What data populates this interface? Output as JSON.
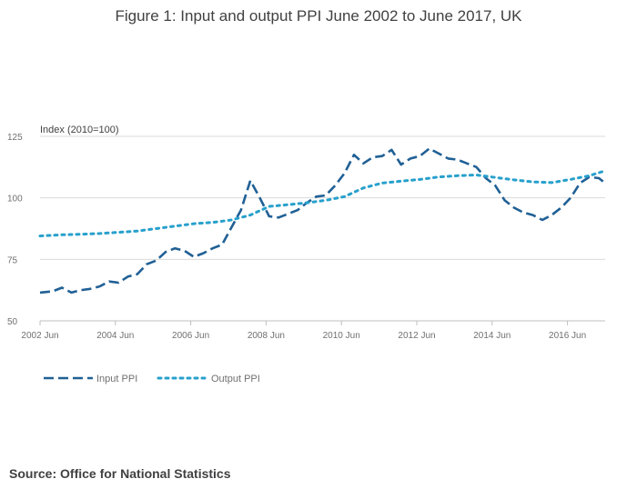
{
  "chart_data": {
    "type": "line",
    "title": "Figure 1: Input and output PPI June 2002 to June 2017, UK",
    "ylabel": "Index (2010=100)",
    "xlabel": "",
    "ylim": [
      50,
      125
    ],
    "yticks": [
      50,
      75,
      100,
      125
    ],
    "xlim": [
      2002.417,
      2017.417
    ],
    "xticks": [
      {
        "label": "2002 Jun",
        "value": 2002.417
      },
      {
        "label": "2004 Jun",
        "value": 2004.417
      },
      {
        "label": "2006 Jun",
        "value": 2006.417
      },
      {
        "label": "2008 Jun",
        "value": 2008.417
      },
      {
        "label": "2010 Jun",
        "value": 2010.417
      },
      {
        "label": "2012 Jun",
        "value": 2012.417
      },
      {
        "label": "2014 Jun",
        "value": 2014.417
      },
      {
        "label": "2016 Jun",
        "value": 2016.417
      }
    ],
    "grid": true,
    "legend_position": "bottom-left",
    "series": [
      {
        "name": "Input PPI",
        "color": "#206095",
        "style": "dashed",
        "x": [
          2002.417,
          2002.75,
          2003.0,
          2003.25,
          2003.5,
          2003.75,
          2004.0,
          2004.25,
          2004.5,
          2004.75,
          2005.0,
          2005.25,
          2005.5,
          2005.75,
          2006.0,
          2006.25,
          2006.5,
          2006.75,
          2007.0,
          2007.25,
          2007.5,
          2007.75,
          2008.0,
          2008.25,
          2008.5,
          2008.75,
          2009.0,
          2009.25,
          2009.5,
          2009.75,
          2010.0,
          2010.25,
          2010.5,
          2010.75,
          2011.0,
          2011.25,
          2011.5,
          2011.75,
          2012.0,
          2012.25,
          2012.5,
          2012.75,
          2013.0,
          2013.25,
          2013.5,
          2013.75,
          2014.0,
          2014.25,
          2014.5,
          2014.75,
          2015.0,
          2015.25,
          2015.5,
          2015.75,
          2016.0,
          2016.25,
          2016.5,
          2016.75,
          2017.0,
          2017.25,
          2017.417
        ],
        "values": [
          61.5,
          62.0,
          63.5,
          61.5,
          62.5,
          63.0,
          64.0,
          66.0,
          65.5,
          68.0,
          69.0,
          73.0,
          74.5,
          78.0,
          79.5,
          78.5,
          76.0,
          77.5,
          79.5,
          81.0,
          88.0,
          95.0,
          107.0,
          100.0,
          92.5,
          92.0,
          93.5,
          95.0,
          98.0,
          100.5,
          101.0,
          105.0,
          110.0,
          117.5,
          114.0,
          116.5,
          117.0,
          119.5,
          113.5,
          116.0,
          117.0,
          120.0,
          118.0,
          116.0,
          115.5,
          114.0,
          112.5,
          108.0,
          105.0,
          99.0,
          96.0,
          94.0,
          93.0,
          91.0,
          93.0,
          96.0,
          100.0,
          106.0,
          108.5,
          108.0,
          106.0
        ]
      },
      {
        "name": "Output PPI",
        "color": "#27a0cc",
        "style": "dotted",
        "x": [
          2002.417,
          2003.0,
          2003.5,
          2004.0,
          2004.5,
          2005.0,
          2005.5,
          2006.0,
          2006.5,
          2007.0,
          2007.5,
          2008.0,
          2008.5,
          2009.0,
          2009.5,
          2010.0,
          2010.5,
          2011.0,
          2011.5,
          2012.0,
          2012.5,
          2013.0,
          2013.5,
          2014.0,
          2014.5,
          2015.0,
          2015.5,
          2016.0,
          2016.5,
          2017.0,
          2017.417
        ],
        "values": [
          84.5,
          85.0,
          85.2,
          85.5,
          86.0,
          86.5,
          87.5,
          88.5,
          89.5,
          90.0,
          91.0,
          93.0,
          96.5,
          97.2,
          98.0,
          99.0,
          100.5,
          104.0,
          106.0,
          106.8,
          107.5,
          108.5,
          109.0,
          109.3,
          108.3,
          107.3,
          106.5,
          106.2,
          107.5,
          109.0,
          111.0
        ]
      }
    ]
  },
  "source": "Source: Office for National Statistics"
}
